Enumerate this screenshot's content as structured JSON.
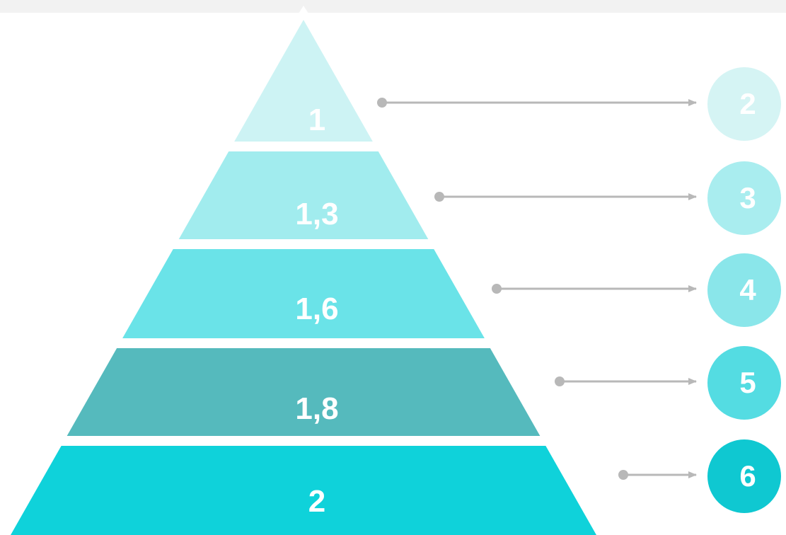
{
  "diagram": {
    "levels": [
      {
        "label": "1",
        "badge": "2",
        "color": "#cdf3f4",
        "badge_color": "#d5f4f4"
      },
      {
        "label": "1,3",
        "badge": "3",
        "color": "#a1ecee",
        "badge_color": "#a9edef"
      },
      {
        "label": "1,6",
        "badge": "4",
        "color": "#6ae3e8",
        "badge_color": "#8ae6ea"
      },
      {
        "label": "1,8",
        "badge": "5",
        "color": "#55babd",
        "badge_color": "#54dce2"
      },
      {
        "label": "2",
        "badge": "6",
        "color": "#0fd2da",
        "badge_color": "#0fc8d1"
      }
    ],
    "connector_color": "#b8b8b8"
  }
}
